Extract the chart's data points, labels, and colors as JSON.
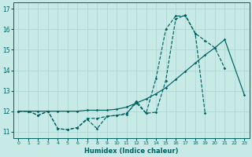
{
  "xlabel": "Humidex (Indice chaleur)",
  "bg_color": "#c8eae6",
  "grid_color": "#b0d8d4",
  "line_color": "#006060",
  "xlim": [
    -0.5,
    23.5
  ],
  "ylim": [
    10.7,
    17.3
  ],
  "xtick_labels": [
    "0",
    "1",
    "2",
    "3",
    "4",
    "5",
    "6",
    "7",
    "8",
    "9",
    "10",
    "11",
    "12",
    "13",
    "14",
    "15",
    "16",
    "17",
    "18",
    "19",
    "20",
    "21",
    "22",
    "23"
  ],
  "yticks": [
    11,
    12,
    13,
    14,
    15,
    16,
    17
  ],
  "line1_x": [
    0,
    1,
    2,
    3,
    4,
    5,
    6,
    7,
    8,
    9,
    10,
    11,
    12,
    13,
    14,
    15,
    16,
    17,
    18,
    19,
    20,
    21
  ],
  "line1_y": [
    12.0,
    12.0,
    11.8,
    12.0,
    11.15,
    11.1,
    11.2,
    11.65,
    11.65,
    11.75,
    11.8,
    11.85,
    12.5,
    11.9,
    13.6,
    16.0,
    16.65,
    16.65,
    15.8,
    15.45,
    15.1,
    14.1
  ],
  "line2_x": [
    0,
    1,
    2,
    3,
    4,
    5,
    6,
    7,
    8,
    9,
    10,
    11,
    12,
    13,
    14,
    15,
    16,
    17,
    18,
    19
  ],
  "line2_y": [
    12.0,
    12.0,
    11.8,
    12.0,
    11.15,
    11.1,
    11.2,
    11.6,
    11.15,
    11.75,
    11.8,
    11.9,
    12.4,
    11.9,
    11.95,
    13.5,
    16.5,
    16.7,
    15.8,
    11.9
  ],
  "line3_x": [
    0,
    1,
    2,
    3,
    4,
    5,
    6,
    7,
    8,
    9,
    10,
    11,
    12,
    13,
    14,
    15,
    16,
    17,
    18,
    19,
    20,
    21,
    23
  ],
  "line3_y": [
    12.0,
    12.0,
    12.0,
    12.0,
    12.0,
    12.0,
    12.0,
    12.05,
    12.05,
    12.05,
    12.1,
    12.2,
    12.4,
    12.6,
    12.85,
    13.15,
    13.55,
    13.95,
    14.35,
    14.75,
    15.1,
    15.5,
    12.8
  ]
}
